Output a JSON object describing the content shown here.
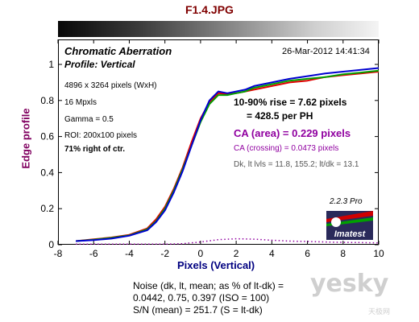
{
  "file_title": "F1.4.JPG",
  "panel": {
    "title": "Chromatic Aberration",
    "subtitle": "Profile: Vertical",
    "timestamp": "26-Mar-2012 14:41:34",
    "info_lines": [
      "4896 x 3264 pixels (WxH)",
      "16 Mpxls",
      "Gamma = 0.5",
      "ROI: 200x100 pixels",
      "71% right of ctr."
    ],
    "rise_line1": "10-90% rise = 7.62 pixels",
    "rise_line2": "= 428.5 per PH",
    "ca_area": "CA (area) = 0.229 pixels",
    "ca_crossing": "CA (crossing) = 0.0473 pixels",
    "dk_line": "Dk, lt lvls = 11.8, 155.2;  lt/dk = 13.1",
    "version": "2.2.3  Pro",
    "logo": "Imatest"
  },
  "noise": {
    "line1": "Noise (dk, lt, mean; as % of lt-dk) =",
    "line2": "0.0442,  0.75,  0.397  (ISO =  100)",
    "line3": "S/N (mean) = 251.7  (S = lt-dk)"
  },
  "watermark": {
    "text": "yesky",
    "subtext": "天极网"
  },
  "colors": {
    "red": "#e00000",
    "green": "#00a000",
    "blue": "#0000d0",
    "purple": "#9000a0",
    "title": "#800000",
    "ylabel": "#800060",
    "xlabel": "#000080"
  },
  "chart_data": {
    "type": "line",
    "xlabel": "Pixels (Vertical)",
    "ylabel": "Edge profile",
    "xlim": [
      -8,
      10
    ],
    "ylim": [
      0,
      1.0
    ],
    "xticks": [
      -8,
      -6,
      -4,
      -2,
      0,
      2,
      4,
      6,
      8,
      10
    ],
    "yticks": [
      0,
      0.2,
      0.4,
      0.6,
      0.8,
      1
    ],
    "series": [
      {
        "color": "red",
        "x": [
          -7,
          -6,
          -5,
          -4,
          -3,
          -2.5,
          -2,
          -1.5,
          -1,
          -0.5,
          0,
          0.5,
          1,
          1.5,
          2,
          2.5,
          3,
          4,
          5,
          6,
          7,
          8,
          9,
          10
        ],
        "y": [
          0.02,
          0.03,
          0.04,
          0.055,
          0.09,
          0.14,
          0.21,
          0.31,
          0.43,
          0.57,
          0.7,
          0.79,
          0.84,
          0.835,
          0.84,
          0.85,
          0.86,
          0.88,
          0.9,
          0.91,
          0.93,
          0.94,
          0.95,
          0.96
        ]
      },
      {
        "color": "green",
        "x": [
          -7,
          -6,
          -5,
          -4,
          -3,
          -2.5,
          -2,
          -1.5,
          -1,
          -0.5,
          0,
          0.5,
          1,
          1.5,
          2,
          2.5,
          3,
          4,
          5,
          6,
          7,
          8,
          9,
          10
        ],
        "y": [
          0.02,
          0.028,
          0.038,
          0.052,
          0.085,
          0.13,
          0.2,
          0.3,
          0.42,
          0.55,
          0.68,
          0.78,
          0.83,
          0.83,
          0.84,
          0.85,
          0.87,
          0.89,
          0.91,
          0.92,
          0.93,
          0.945,
          0.955,
          0.965
        ]
      },
      {
        "color": "blue",
        "x": [
          -7,
          -6,
          -5,
          -4,
          -3,
          -2.5,
          -2,
          -1.5,
          -1,
          -0.5,
          0,
          0.5,
          1,
          1.5,
          2,
          2.5,
          3,
          4,
          5,
          6,
          7,
          8,
          9,
          10
        ],
        "y": [
          0.02,
          0.026,
          0.034,
          0.05,
          0.08,
          0.125,
          0.19,
          0.29,
          0.41,
          0.55,
          0.69,
          0.8,
          0.85,
          0.84,
          0.85,
          0.86,
          0.88,
          0.9,
          0.92,
          0.935,
          0.95,
          0.96,
          0.97,
          0.98
        ]
      },
      {
        "color": "purple",
        "style": "dotted",
        "x": [
          -7,
          -6,
          -4,
          -2,
          -1,
          0,
          1,
          2,
          3,
          4,
          5,
          6,
          7,
          8,
          9,
          10
        ],
        "y": [
          0.003,
          0.003,
          0.003,
          0.003,
          0.006,
          0.015,
          0.028,
          0.033,
          0.031,
          0.025,
          0.02,
          0.018,
          0.015,
          0.013,
          0.012,
          0.01
        ]
      }
    ]
  }
}
